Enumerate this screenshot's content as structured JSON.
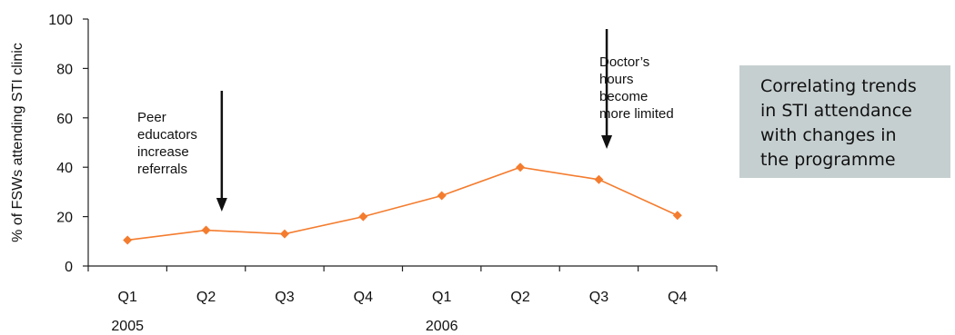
{
  "chart_data": {
    "type": "line",
    "ylabel": "% of FSWs attending STI clinic",
    "xlabel": "",
    "ylim": [
      0,
      100
    ],
    "yticks": [
      0,
      20,
      40,
      60,
      80,
      100
    ],
    "categories": [
      "Q1",
      "Q2",
      "Q3",
      "Q4",
      "Q1",
      "Q2",
      "Q3",
      "Q4"
    ],
    "years": [
      {
        "label": "2005",
        "category_index": 0
      },
      {
        "label": "2006",
        "category_index": 4
      }
    ],
    "series": [
      {
        "values": [
          10.5,
          14.5,
          13,
          20,
          28.5,
          40,
          35,
          20.5
        ]
      }
    ],
    "annotations": [
      {
        "id": "peer",
        "lines": [
          "Peer",
          "educators",
          "increase",
          "referrals"
        ],
        "arrow_at_category": 1.2
      },
      {
        "id": "doctor",
        "lines": [
          "Doctor’s",
          "hours",
          "become",
          "more limited"
        ],
        "arrow_at_category": 6.1
      }
    ],
    "colors": {
      "series": "#f47c2e",
      "axis": "#222222",
      "arrow": "#111111"
    },
    "grid": false
  },
  "callout": {
    "lines": [
      "Correlating trends",
      "in STI attendance",
      "with changes in",
      "the programme"
    ],
    "background": "#c6cfd0"
  }
}
